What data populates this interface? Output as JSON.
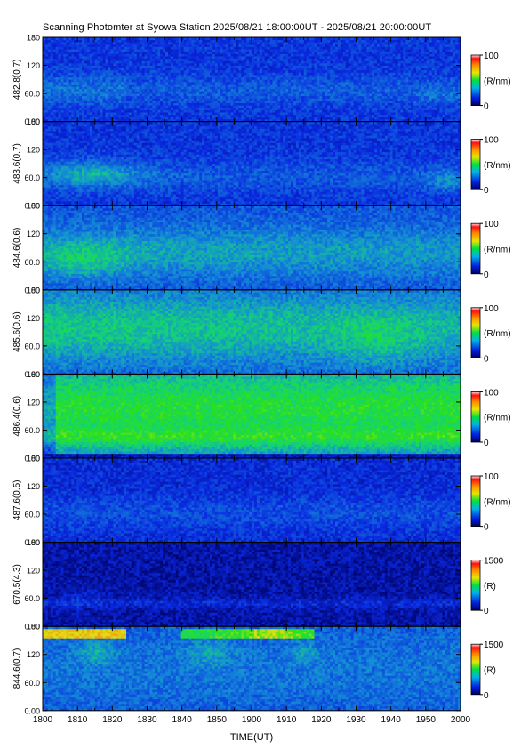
{
  "chart_data": {
    "type": "heatmap",
    "title": "Scanning Photomter at Syowa Station 2025/08/21 18:00:00UT - 2025/08/21 20:00:00UT",
    "xlabel": "TIME(UT)",
    "x_ticks": [
      "1800",
      "1810",
      "1820",
      "1830",
      "1840",
      "1850",
      "1900",
      "1910",
      "1920",
      "1930",
      "1940",
      "1950",
      "2000"
    ],
    "y_ticks": [
      "0.00",
      "60.0",
      "120",
      "180"
    ],
    "ylim": [
      0,
      180
    ],
    "colormap": [
      "#0a0a6e",
      "#1e32d2",
      "#1ec8d2",
      "#28dc1e",
      "#dcdc14",
      "#f0961e",
      "#e61e1e",
      "#f0f0f0"
    ],
    "panels": [
      {
        "ylabel": "482.8(0.7)",
        "unit": "(R/nm)",
        "cbar_max": "100",
        "cbar_min": "0",
        "pattern": "faint"
      },
      {
        "ylabel": "483.6(0.7)",
        "unit": "(R/nm)",
        "cbar_max": "100",
        "cbar_min": "0",
        "pattern": "faint2"
      },
      {
        "ylabel": "484.6(0.6)",
        "unit": "(R/nm)",
        "cbar_max": "100",
        "cbar_min": "0",
        "pattern": "medium"
      },
      {
        "ylabel": "485.6(0.6)",
        "unit": "(R/nm)",
        "cbar_max": "100",
        "cbar_min": "0",
        "pattern": "medium2"
      },
      {
        "ylabel": "486.4(0.6)",
        "unit": "(R/nm)",
        "cbar_max": "100",
        "cbar_min": "0",
        "pattern": "strong"
      },
      {
        "ylabel": "487.6(0.5)",
        "unit": "(R/nm)",
        "cbar_max": "100",
        "cbar_min": "0",
        "pattern": "faint3"
      },
      {
        "ylabel": "670.5(4.3)",
        "unit": "(R)",
        "cbar_max": "1500",
        "cbar_min": "0",
        "pattern": "dark"
      },
      {
        "ylabel": "844.6(0.7)",
        "unit": "(R)",
        "cbar_max": "1500",
        "cbar_min": "0",
        "pattern": "ir"
      }
    ]
  }
}
